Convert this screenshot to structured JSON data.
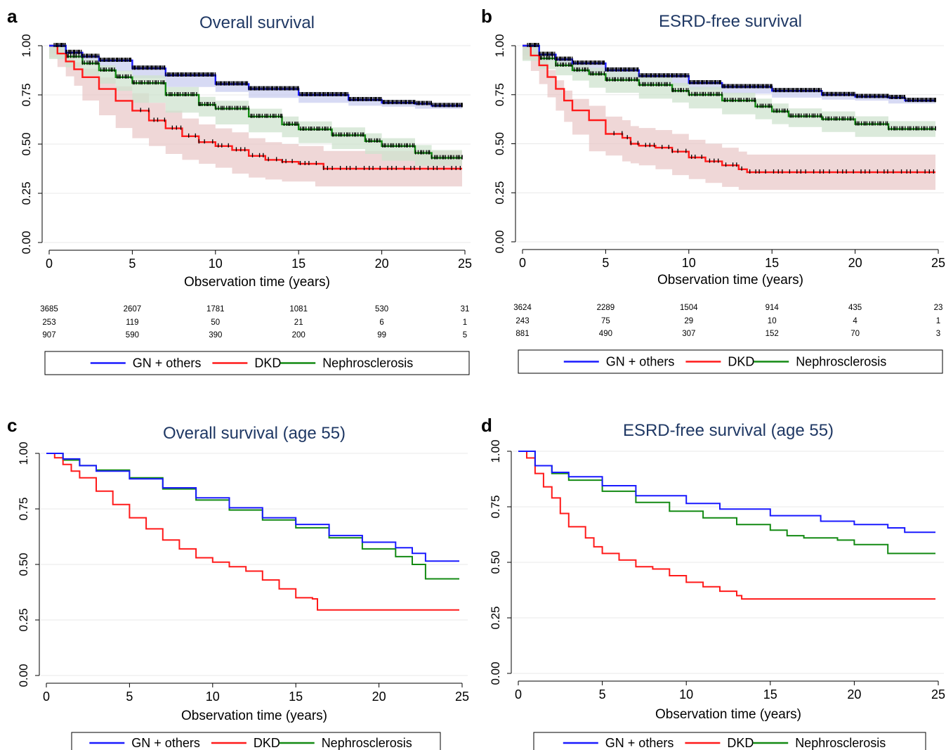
{
  "figure": {
    "colors": {
      "GN + others": "#1a1aff",
      "DKD": "#ff1a1a",
      "Nephrosclerosis": "#138a13",
      "title": "#1f3864",
      "grid": "#e8e8e8",
      "ci_red": "#e9c9c9",
      "ci_green": "#cfe3cf",
      "ci_blue": "#c9cdf0"
    }
  },
  "chart_data": [
    {
      "type": "line",
      "panel_letter": "a",
      "title": "Overall survival",
      "xlabel": "Observation time (years)",
      "ylabel": "",
      "xlim": [
        0,
        25
      ],
      "ylim": [
        0,
        1
      ],
      "xticks": [
        "0",
        "5",
        "10",
        "15",
        "20",
        "25"
      ],
      "yticks": [
        "0.00",
        "0.25",
        "0.50",
        "0.75",
        "1.00"
      ],
      "grid": true,
      "confidence_band": true,
      "censor_marks": true,
      "legend": "bottom",
      "series": [
        {
          "name": "GN + others",
          "x": [
            0,
            1,
            2,
            3,
            5,
            7,
            10,
            12,
            15,
            18,
            20,
            22,
            23,
            25.3
          ],
          "y": [
            1,
            0.965,
            0.945,
            0.925,
            0.885,
            0.85,
            0.805,
            0.78,
            0.75,
            0.725,
            0.71,
            0.705,
            0.695,
            0.695
          ],
          "band": 0.015
        },
        {
          "name": "DKD",
          "x": [
            0,
            0.5,
            1,
            1.5,
            2,
            3,
            4,
            5,
            6,
            7,
            8,
            9,
            10,
            11,
            12,
            13,
            14,
            15,
            16,
            16.5,
            25.3
          ],
          "y": [
            1,
            0.96,
            0.92,
            0.88,
            0.84,
            0.78,
            0.72,
            0.67,
            0.62,
            0.58,
            0.54,
            0.51,
            0.49,
            0.47,
            0.44,
            0.42,
            0.41,
            0.4,
            0.4,
            0.375,
            0.375
          ],
          "band": 0.09
        },
        {
          "name": "Nephrosclerosis",
          "x": [
            0,
            1,
            2,
            3,
            4,
            5,
            7,
            9,
            10,
            12,
            14,
            15,
            17,
            19,
            20,
            22,
            23,
            25.3
          ],
          "y": [
            1,
            0.945,
            0.91,
            0.875,
            0.84,
            0.81,
            0.75,
            0.7,
            0.68,
            0.64,
            0.6,
            0.575,
            0.545,
            0.515,
            0.49,
            0.455,
            0.43,
            0.43
          ],
          "band": 0.04
        }
      ],
      "risk_table": {
        "times": [
          "0",
          "5",
          "10",
          "15",
          "20",
          "25"
        ],
        "rows": [
          [
            "3685",
            "2607",
            "1781",
            "1081",
            "530",
            "31"
          ],
          [
            "253",
            "119",
            "50",
            "21",
            "6",
            "1"
          ],
          [
            "907",
            "590",
            "390",
            "200",
            "99",
            "5"
          ]
        ]
      },
      "legend_entries": [
        "GN + others",
        "DKD",
        "Nephrosclerosis"
      ]
    },
    {
      "type": "line",
      "panel_letter": "b",
      "title": "ESRD-free survival",
      "xlabel": "Observation time (years)",
      "ylabel": "",
      "xlim": [
        0,
        25
      ],
      "ylim": [
        0,
        1
      ],
      "xticks": [
        "0",
        "5",
        "10",
        "15",
        "20",
        "25"
      ],
      "yticks": [
        "0.00",
        "0.25",
        "0.50",
        "0.75",
        "1.00"
      ],
      "grid": true,
      "confidence_band": true,
      "censor_marks": true,
      "legend": "bottom",
      "series": [
        {
          "name": "GN + others",
          "x": [
            0,
            1,
            2,
            3,
            5,
            7,
            10,
            12,
            15,
            18,
            20,
            22,
            23,
            25.3
          ],
          "y": [
            1,
            0.955,
            0.93,
            0.91,
            0.875,
            0.845,
            0.81,
            0.79,
            0.77,
            0.75,
            0.74,
            0.735,
            0.72,
            0.72
          ],
          "band": 0.015
        },
        {
          "name": "DKD",
          "x": [
            0,
            0.5,
            1,
            1.5,
            2,
            2.5,
            3,
            4,
            5,
            6,
            6.5,
            7,
            8,
            9,
            10,
            11,
            12,
            13,
            13.5,
            25.3
          ],
          "y": [
            1,
            0.95,
            0.9,
            0.84,
            0.78,
            0.72,
            0.67,
            0.62,
            0.55,
            0.53,
            0.5,
            0.49,
            0.48,
            0.46,
            0.43,
            0.41,
            0.39,
            0.37,
            0.355,
            0.355
          ],
          "band": 0.09
        },
        {
          "name": "Nephrosclerosis",
          "x": [
            0,
            1,
            2,
            3,
            4,
            5,
            7,
            9,
            10,
            12,
            14,
            15,
            16,
            18,
            20,
            22,
            25.3
          ],
          "y": [
            1,
            0.935,
            0.9,
            0.875,
            0.855,
            0.825,
            0.8,
            0.77,
            0.75,
            0.72,
            0.69,
            0.665,
            0.64,
            0.625,
            0.6,
            0.575,
            0.575
          ],
          "band": 0.04
        }
      ],
      "risk_table": {
        "times": [
          "0",
          "5",
          "10",
          "15",
          "20",
          "25"
        ],
        "rows": [
          [
            "3624",
            "2289",
            "1504",
            "914",
            "435",
            "23"
          ],
          [
            "243",
            "75",
            "29",
            "10",
            "4",
            "1"
          ],
          [
            "881",
            "490",
            "307",
            "152",
            "70",
            "3"
          ]
        ]
      },
      "legend_entries": [
        "GN + others",
        "DKD",
        "Nephrosclerosis"
      ]
    },
    {
      "type": "line",
      "panel_letter": "c",
      "title": "Overall survival (age 55)",
      "xlabel": "Observation time (years)",
      "ylabel": "",
      "xlim": [
        0,
        25
      ],
      "ylim": [
        0,
        1
      ],
      "xticks": [
        "0",
        "5",
        "10",
        "15",
        "20",
        "25"
      ],
      "yticks": [
        "0.00",
        "0.25",
        "0.50",
        "0.75",
        "1.00"
      ],
      "grid": true,
      "confidence_band": false,
      "censor_marks": false,
      "legend": "bottom",
      "series": [
        {
          "name": "GN + others",
          "x": [
            0,
            1,
            2,
            3,
            5,
            7,
            9,
            11,
            13,
            15,
            17,
            19,
            21,
            22,
            22.8,
            25.3
          ],
          "y": [
            1,
            0.975,
            0.945,
            0.92,
            0.885,
            0.845,
            0.8,
            0.755,
            0.71,
            0.68,
            0.63,
            0.6,
            0.575,
            0.55,
            0.515,
            0.515
          ],
          "band": 0
        },
        {
          "name": "DKD",
          "x": [
            0,
            0.5,
            1,
            1.5,
            2,
            3,
            4,
            5,
            6,
            7,
            8,
            9,
            10,
            11,
            12,
            13,
            14,
            15,
            16,
            16.3,
            25.3
          ],
          "y": [
            1,
            0.98,
            0.95,
            0.92,
            0.89,
            0.83,
            0.77,
            0.71,
            0.66,
            0.61,
            0.57,
            0.53,
            0.51,
            0.49,
            0.47,
            0.43,
            0.39,
            0.35,
            0.345,
            0.295,
            0.295
          ],
          "band": 0
        },
        {
          "name": "Nephrosclerosis",
          "x": [
            0,
            1,
            2,
            3,
            5,
            7,
            9,
            11,
            13,
            15,
            17,
            19,
            21,
            22,
            22.8,
            25.3
          ],
          "y": [
            1,
            0.97,
            0.945,
            0.925,
            0.89,
            0.84,
            0.79,
            0.745,
            0.7,
            0.665,
            0.62,
            0.57,
            0.535,
            0.5,
            0.435,
            0.435
          ],
          "band": 0
        }
      ],
      "legend_entries": [
        "GN + others",
        "DKD",
        "Nephrosclerosis"
      ]
    },
    {
      "type": "line",
      "panel_letter": "d",
      "title": "ESRD-free survival (age 55)",
      "xlabel": "Observation time (years)",
      "ylabel": "",
      "xlim": [
        0,
        25
      ],
      "ylim": [
        0,
        1
      ],
      "xticks": [
        "0",
        "5",
        "10",
        "15",
        "20",
        "25"
      ],
      "yticks": [
        "0.00",
        "0.25",
        "0.50",
        "0.75",
        "1.00"
      ],
      "grid": true,
      "confidence_band": false,
      "censor_marks": false,
      "legend": "bottom",
      "series": [
        {
          "name": "GN + others",
          "x": [
            0,
            1,
            2,
            3,
            5,
            7,
            10,
            12,
            15,
            18,
            20,
            22,
            23,
            25.3
          ],
          "y": [
            1,
            0.935,
            0.905,
            0.885,
            0.845,
            0.8,
            0.765,
            0.74,
            0.71,
            0.685,
            0.67,
            0.655,
            0.635,
            0.635
          ],
          "band": 0
        },
        {
          "name": "DKD",
          "x": [
            0,
            0.5,
            1,
            1.5,
            2,
            2.5,
            3,
            4,
            4.5,
            5,
            6,
            7,
            8,
            9,
            10,
            11,
            12,
            13,
            13.3,
            25.3
          ],
          "y": [
            1,
            0.97,
            0.9,
            0.84,
            0.79,
            0.72,
            0.66,
            0.61,
            0.57,
            0.54,
            0.51,
            0.48,
            0.47,
            0.44,
            0.41,
            0.39,
            0.37,
            0.35,
            0.335,
            0.335
          ],
          "band": 0
        },
        {
          "name": "Nephrosclerosis",
          "x": [
            0,
            1,
            2,
            3,
            5,
            7,
            9,
            11,
            13,
            15,
            16,
            17,
            19,
            20,
            22,
            25.3
          ],
          "y": [
            1,
            0.935,
            0.9,
            0.87,
            0.82,
            0.77,
            0.73,
            0.7,
            0.67,
            0.645,
            0.62,
            0.61,
            0.6,
            0.58,
            0.54,
            0.54
          ],
          "band": 0
        }
      ],
      "legend_entries": [
        "GN + others",
        "DKD",
        "Nephrosclerosis"
      ]
    }
  ]
}
